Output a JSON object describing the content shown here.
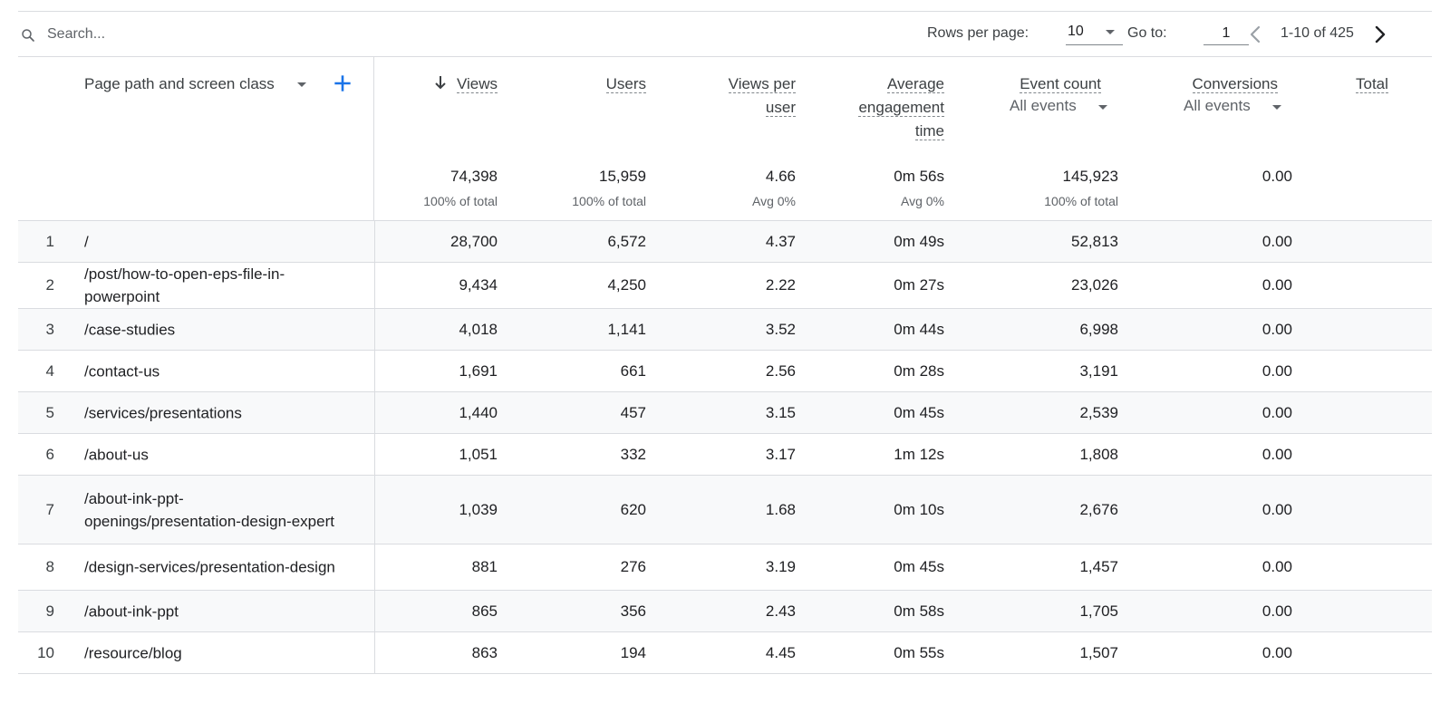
{
  "search": {
    "placeholder": "Search..."
  },
  "pagination": {
    "rows_per_page_label": "Rows per page:",
    "rows_per_page_value": "10",
    "goto_label": "Go to:",
    "goto_value": "1",
    "range_text": "1-10 of 425"
  },
  "header": {
    "dimension_label": "Page path and screen class",
    "metrics": {
      "views": "Views",
      "users": "Users",
      "views_per_user_1": "Views per",
      "views_per_user_2": "user",
      "avg_eng_1": "Average",
      "avg_eng_2": "engagement",
      "avg_eng_3": "time",
      "event_count": "Event count",
      "event_count_filter": "All events",
      "conversions": "Conversions",
      "conversions_filter": "All events",
      "total": "Total"
    }
  },
  "totals": {
    "views": "74,398",
    "views_sub": "100% of total",
    "users": "15,959",
    "users_sub": "100% of total",
    "views_per_user": "4.66",
    "views_per_user_sub": "Avg 0%",
    "avg_engagement": "0m 56s",
    "avg_engagement_sub": "Avg 0%",
    "event_count": "145,923",
    "event_count_sub": "100% of total",
    "conversions": "0.00"
  },
  "rows": [
    {
      "num": "1",
      "path": "/",
      "views": "28,700",
      "users": "6,572",
      "vpu": "4.37",
      "eng": "0m 49s",
      "events": "52,813",
      "conv": "0.00"
    },
    {
      "num": "2",
      "path": "/post/how-to-open-eps-file-in-powerpoint",
      "views": "9,434",
      "users": "4,250",
      "vpu": "2.22",
      "eng": "0m 27s",
      "events": "23,026",
      "conv": "0.00"
    },
    {
      "num": "3",
      "path": "/case-studies",
      "views": "4,018",
      "users": "1,141",
      "vpu": "3.52",
      "eng": "0m 44s",
      "events": "6,998",
      "conv": "0.00"
    },
    {
      "num": "4",
      "path": "/contact-us",
      "views": "1,691",
      "users": "661",
      "vpu": "2.56",
      "eng": "0m 28s",
      "events": "3,191",
      "conv": "0.00"
    },
    {
      "num": "5",
      "path": "/services/presentations",
      "views": "1,440",
      "users": "457",
      "vpu": "3.15",
      "eng": "0m 45s",
      "events": "2,539",
      "conv": "0.00"
    },
    {
      "num": "6",
      "path": "/about-us",
      "views": "1,051",
      "users": "332",
      "vpu": "3.17",
      "eng": "1m 12s",
      "events": "1,808",
      "conv": "0.00"
    },
    {
      "num": "7",
      "path": "/about-ink-ppt-openings/presentation-design-expert",
      "views": "1,039",
      "users": "620",
      "vpu": "1.68",
      "eng": "0m 10s",
      "events": "2,676",
      "conv": "0.00"
    },
    {
      "num": "8",
      "path": "/design-services/presentation-design",
      "views": "881",
      "users": "276",
      "vpu": "3.19",
      "eng": "0m 45s",
      "events": "1,457",
      "conv": "0.00"
    },
    {
      "num": "9",
      "path": "/about-ink-ppt",
      "views": "865",
      "users": "356",
      "vpu": "2.43",
      "eng": "0m 58s",
      "events": "1,705",
      "conv": "0.00"
    },
    {
      "num": "10",
      "path": "/resource/blog",
      "views": "863",
      "users": "194",
      "vpu": "4.45",
      "eng": "0m 55s",
      "events": "1,507",
      "conv": "0.00"
    }
  ],
  "icons": {
    "search": "search-icon",
    "rows_dropdown": "caret-down-icon",
    "prev": "chevron-left-icon",
    "next": "chevron-right-icon",
    "add_dimension": "plus-icon",
    "sort": "arrow-down-icon"
  },
  "colors": {
    "accent": "#1a73e8",
    "row_alt": "#f8f9fa",
    "divider": "#dadce0"
  }
}
